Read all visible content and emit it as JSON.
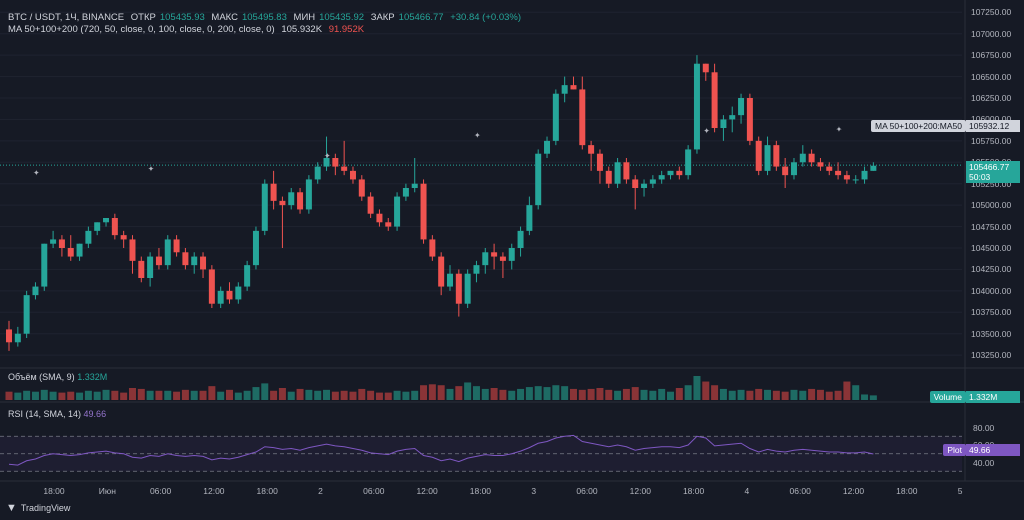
{
  "header": {
    "symbol": "BTC / USDT, 1Ч, BINANCE",
    "open_label": "ОТКР",
    "open": "105435.93",
    "high_label": "МАКС",
    "high": "105495.83",
    "low_label": "МИН",
    "low": "105435.92",
    "close_label": "ЗАКР",
    "close": "105466.77",
    "change": "+30.84 (+0.03%)",
    "ma_line": "MA 50+100+200 (720, 50, close, 0, 100, close, 0, 200, close, 0)",
    "ma_value1": "105.932K",
    "ma_value2": "91.952K"
  },
  "price_axis": {
    "ticks": [
      "107250.00",
      "107000.00",
      "106750.00",
      "106500.00",
      "106250.00",
      "106000.00",
      "105750.00",
      "105500.00",
      "105250.00",
      "105000.00",
      "104750.00",
      "104500.00",
      "104250.00",
      "104000.00",
      "103750.00",
      "103500.00",
      "103250.00"
    ],
    "ma_tag": "MA 50+100+200:MA50",
    "ma_tag_value": "105932.12",
    "last_price": "105466.77",
    "countdown": "50:03"
  },
  "volume_pane": {
    "label": "Объём (SMA, 9)",
    "value": "1.332M",
    "tag_label": "Volume",
    "tag_value": "1.332M"
  },
  "rsi_pane": {
    "label": "RSI (14, SMA, 14)",
    "value": "49.66",
    "ticks": [
      "80.00",
      "60.00",
      "40.00"
    ],
    "tag_label": "Plot",
    "tag_value": "49.66"
  },
  "time_axis": {
    "labels": [
      "18:00",
      "Июн",
      "06:00",
      "12:00",
      "18:00",
      "2",
      "06:00",
      "12:00",
      "18:00",
      "3",
      "06:00",
      "12:00",
      "18:00",
      "4",
      "06:00",
      "12:00",
      "18:00",
      "5"
    ]
  },
  "footer": {
    "brand": "TradingView"
  },
  "colors": {
    "up": "#26a69a",
    "down": "#ef5350",
    "rsi": "#7e57c2",
    "bg": "#161a25"
  },
  "chart_data": {
    "type": "candlestick",
    "ylim": [
      103100,
      107300
    ],
    "candles": [
      [
        103550,
        103650,
        103300,
        103400
      ],
      [
        103400,
        103580,
        103350,
        103500
      ],
      [
        103500,
        104000,
        103450,
        103950
      ],
      [
        103950,
        104100,
        103900,
        104050
      ],
      [
        104050,
        104550,
        104000,
        104550
      ],
      [
        104550,
        104700,
        104500,
        104600
      ],
      [
        104600,
        104650,
        104400,
        104500
      ],
      [
        104500,
        104650,
        104350,
        104400
      ],
      [
        104400,
        104550,
        104350,
        104550
      ],
      [
        104550,
        104750,
        104500,
        104700
      ],
      [
        104700,
        104800,
        104650,
        104800
      ],
      [
        104800,
        104850,
        104750,
        104850
      ],
      [
        104850,
        104900,
        104600,
        104650
      ],
      [
        104650,
        104700,
        104500,
        104600
      ],
      [
        104600,
        104650,
        104200,
        104350
      ],
      [
        104350,
        104400,
        104100,
        104150
      ],
      [
        104150,
        104450,
        104050,
        104400
      ],
      [
        104400,
        104500,
        104250,
        104300
      ],
      [
        104300,
        104650,
        104250,
        104600
      ],
      [
        104600,
        104650,
        104400,
        104450
      ],
      [
        104450,
        104500,
        104250,
        104300
      ],
      [
        104300,
        104450,
        104200,
        104400
      ],
      [
        104400,
        104450,
        104150,
        104250
      ],
      [
        104250,
        104300,
        103800,
        103850
      ],
      [
        103850,
        104050,
        103800,
        104000
      ],
      [
        104000,
        104100,
        103850,
        103900
      ],
      [
        103900,
        104100,
        103850,
        104050
      ],
      [
        104050,
        104350,
        104000,
        104300
      ],
      [
        104300,
        104750,
        104250,
        104700
      ],
      [
        104700,
        105300,
        104650,
        105250
      ],
      [
        105250,
        105400,
        104950,
        105050
      ],
      [
        105050,
        105100,
        104500,
        105000
      ],
      [
        105000,
        105200,
        104950,
        105150
      ],
      [
        105150,
        105200,
        104900,
        104950
      ],
      [
        104950,
        105350,
        104900,
        105300
      ],
      [
        105300,
        105500,
        105250,
        105450
      ],
      [
        105450,
        105800,
        105400,
        105550
      ],
      [
        105550,
        105600,
        105350,
        105450
      ],
      [
        105450,
        105750,
        105350,
        105400
      ],
      [
        105400,
        105450,
        105250,
        105300
      ],
      [
        105300,
        105350,
        105050,
        105100
      ],
      [
        105100,
        105150,
        104850,
        104900
      ],
      [
        104900,
        104950,
        104750,
        104800
      ],
      [
        104800,
        104850,
        104700,
        104750
      ],
      [
        104750,
        105150,
        104700,
        105100
      ],
      [
        105100,
        105250,
        105050,
        105200
      ],
      [
        105200,
        105550,
        105150,
        105250
      ],
      [
        105250,
        105300,
        104550,
        104600
      ],
      [
        104600,
        104650,
        104350,
        104400
      ],
      [
        104400,
        104450,
        103950,
        104050
      ],
      [
        104050,
        104300,
        104000,
        104200
      ],
      [
        104200,
        104250,
        103700,
        103850
      ],
      [
        103850,
        104250,
        103800,
        104200
      ],
      [
        104200,
        104350,
        104100,
        104300
      ],
      [
        104300,
        104500,
        104200,
        104450
      ],
      [
        104450,
        104550,
        104250,
        104400
      ],
      [
        104400,
        104450,
        104150,
        104350
      ],
      [
        104350,
        104550,
        104250,
        104500
      ],
      [
        104500,
        104750,
        104400,
        104700
      ],
      [
        104700,
        105100,
        104650,
        105000
      ],
      [
        105000,
        105650,
        104950,
        105600
      ],
      [
        105600,
        105800,
        105550,
        105750
      ],
      [
        105750,
        106350,
        105700,
        106300
      ],
      [
        106300,
        106500,
        106200,
        106400
      ],
      [
        106400,
        106500,
        106350,
        106350
      ],
      [
        106350,
        106500,
        105650,
        105700
      ],
      [
        105700,
        105750,
        105400,
        105600
      ],
      [
        105600,
        105650,
        105250,
        105400
      ],
      [
        105400,
        105450,
        105200,
        105250
      ],
      [
        105250,
        105550,
        105200,
        105500
      ],
      [
        105500,
        105550,
        105250,
        105300
      ],
      [
        105300,
        105350,
        104950,
        105200
      ],
      [
        105200,
        105300,
        105100,
        105250
      ],
      [
        105250,
        105350,
        105200,
        105300
      ],
      [
        105300,
        105400,
        105250,
        105350
      ],
      [
        105350,
        105400,
        105300,
        105400
      ],
      [
        105400,
        105450,
        105300,
        105350
      ],
      [
        105350,
        105700,
        105300,
        105650
      ],
      [
        105650,
        106750,
        105600,
        106650
      ],
      [
        106650,
        106650,
        106450,
        106550
      ],
      [
        106550,
        106650,
        105850,
        105900
      ],
      [
        105900,
        106050,
        105750,
        106000
      ],
      [
        106000,
        106150,
        105850,
        106050
      ],
      [
        106050,
        106300,
        105950,
        106250
      ],
      [
        106250,
        106300,
        105700,
        105750
      ],
      [
        105750,
        105800,
        105350,
        105400
      ],
      [
        105400,
        105800,
        105350,
        105700
      ],
      [
        105700,
        105750,
        105400,
        105450
      ],
      [
        105450,
        105550,
        105200,
        105350
      ],
      [
        105350,
        105550,
        105300,
        105500
      ],
      [
        105500,
        105700,
        105450,
        105600
      ],
      [
        105600,
        105650,
        105450,
        105500
      ],
      [
        105500,
        105550,
        105400,
        105450
      ],
      [
        105450,
        105500,
        105350,
        105400
      ],
      [
        105400,
        105500,
        105300,
        105350
      ],
      [
        105350,
        105400,
        105250,
        105300
      ],
      [
        105300,
        105350,
        105250,
        105300
      ],
      [
        105300,
        105450,
        105250,
        105400
      ],
      [
        105400,
        105500,
        105400,
        105460
      ]
    ],
    "volume": [
      0.9,
      0.8,
      1.0,
      0.9,
      1.1,
      0.9,
      0.8,
      0.9,
      0.8,
      1.0,
      0.9,
      1.1,
      1.0,
      0.8,
      1.3,
      1.2,
      1.0,
      1.0,
      1.0,
      0.9,
      1.1,
      1.0,
      1.0,
      1.5,
      0.9,
      1.1,
      0.8,
      1.0,
      1.4,
      1.8,
      1.0,
      1.3,
      0.9,
      1.2,
      1.1,
      1.0,
      1.1,
      0.9,
      1.0,
      0.9,
      1.2,
      1.0,
      0.8,
      0.8,
      1.0,
      0.9,
      1.0,
      1.6,
      1.7,
      1.6,
      1.2,
      1.5,
      1.9,
      1.5,
      1.2,
      1.3,
      1.1,
      1.0,
      1.2,
      1.4,
      1.5,
      1.4,
      1.6,
      1.5,
      1.2,
      1.1,
      1.2,
      1.3,
      1.1,
      1.0,
      1.2,
      1.4,
      1.1,
      1.0,
      1.2,
      0.9,
      1.3,
      1.6,
      2.6,
      2.0,
      1.6,
      1.2,
      1.0,
      1.1,
      1.0,
      1.2,
      1.1,
      1.0,
      0.9,
      1.1,
      1.0,
      1.2,
      1.1,
      0.9,
      1.0,
      2.0,
      1.6,
      0.6,
      0.5
    ],
    "rsi": [
      38,
      37,
      42,
      44,
      48,
      50,
      49,
      48,
      49,
      51,
      52,
      53,
      51,
      50,
      46,
      45,
      48,
      47,
      50,
      48,
      47,
      48,
      47,
      43,
      45,
      44,
      46,
      49,
      52,
      58,
      57,
      55,
      56,
      54,
      57,
      59,
      61,
      59,
      58,
      56,
      54,
      51,
      50,
      49,
      53,
      55,
      56,
      48,
      46,
      42,
      44,
      41,
      45,
      47,
      49,
      48,
      48,
      50,
      53,
      57,
      62,
      64,
      68,
      70,
      71,
      64,
      62,
      60,
      58,
      60,
      58,
      54,
      56,
      57,
      58,
      58,
      57,
      60,
      70,
      68,
      59,
      60,
      61,
      62,
      56,
      52,
      55,
      53,
      52,
      54,
      55,
      54,
      53,
      52,
      52,
      51,
      51,
      52,
      49.66
    ],
    "ma50": 105932.12,
    "markers": [
      [
        3,
        105380
      ],
      [
        16,
        105430
      ],
      [
        36,
        105580
      ],
      [
        53,
        105820
      ],
      [
        79,
        105870
      ],
      [
        94,
        105890
      ]
    ]
  }
}
